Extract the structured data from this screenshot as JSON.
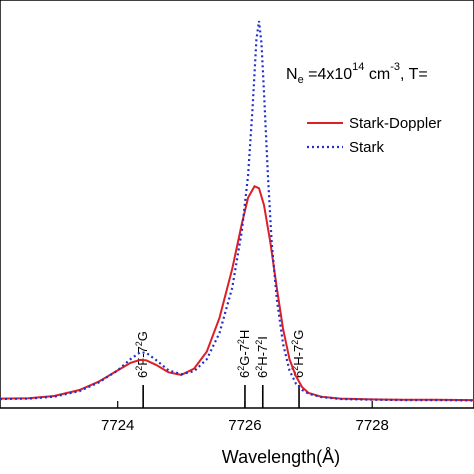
{
  "chart_data": {
    "type": "line",
    "xlabel": "Wavelength(Å)",
    "ylabel": "",
    "xlim": [
      7722.15,
      7729.6
    ],
    "ylim": [
      -0.02,
      1.05
    ],
    "x_ticks": [
      7724,
      7726,
      7728
    ],
    "x_tick_labels": [
      "7724",
      "7726",
      "7728"
    ],
    "legend": {
      "condition": {
        "prefix": "N",
        "sub": "e",
        "mid": " =4x10",
        "sup1": "14",
        "unit": "  cm",
        "sup2": "-3",
        "suffix": ", T="
      },
      "entries": [
        {
          "name": "Stark-Doppler",
          "color": "#dd1f26",
          "style": "solid"
        },
        {
          "name": "Stark",
          "color": "#1f2fc8",
          "style": "dotted"
        }
      ],
      "placement": "top-right"
    },
    "series": [
      {
        "name": "Stark-Doppler",
        "color": "#dd1f26",
        "style": "solid",
        "x": [
          7722.15,
          7722.6,
          7723.0,
          7723.4,
          7723.7,
          7724.0,
          7724.2,
          7724.35,
          7724.45,
          7724.6,
          7724.8,
          7725.0,
          7725.2,
          7725.4,
          7725.6,
          7725.8,
          7725.95,
          7726.05,
          7726.15,
          7726.22,
          7726.3,
          7726.4,
          7726.5,
          7726.6,
          7726.7,
          7726.8,
          7726.9,
          7727.0,
          7727.2,
          7727.5,
          7728.0,
          7728.5,
          7729.0,
          7729.6
        ],
        "y": [
          0.005,
          0.006,
          0.012,
          0.028,
          0.05,
          0.08,
          0.1,
          0.108,
          0.107,
          0.095,
          0.075,
          0.068,
          0.085,
          0.13,
          0.22,
          0.35,
          0.47,
          0.54,
          0.57,
          0.565,
          0.52,
          0.42,
          0.3,
          0.19,
          0.11,
          0.065,
          0.035,
          0.02,
          0.01,
          0.005,
          0.003,
          0.002,
          0.002,
          0.001
        ]
      },
      {
        "name": "Stark",
        "color": "#1f2fc8",
        "style": "dotted",
        "x": [
          7722.15,
          7722.6,
          7723.0,
          7723.4,
          7723.7,
          7724.0,
          7724.2,
          7724.35,
          7724.45,
          7724.6,
          7724.8,
          7725.0,
          7725.2,
          7725.4,
          7725.6,
          7725.8,
          7725.95,
          7726.05,
          7726.12,
          7726.18,
          7726.22,
          7726.26,
          7726.3,
          7726.36,
          7726.42,
          7726.5,
          7726.6,
          7726.7,
          7726.8,
          7726.9,
          7727.0,
          7727.2,
          7727.5,
          7728.0,
          7728.5,
          7729.0,
          7729.6
        ],
        "y": [
          0.004,
          0.005,
          0.01,
          0.025,
          0.048,
          0.08,
          0.11,
          0.128,
          0.127,
          0.108,
          0.08,
          0.07,
          0.078,
          0.11,
          0.18,
          0.3,
          0.45,
          0.6,
          0.78,
          0.96,
          1.01,
          0.95,
          0.82,
          0.6,
          0.42,
          0.27,
          0.15,
          0.08,
          0.045,
          0.028,
          0.018,
          0.009,
          0.004,
          0.002,
          0.001,
          0.001,
          0.0
        ]
      }
    ],
    "markers": [
      {
        "x": 7724.4,
        "label_parts": [
          "6",
          "2",
          "F-7",
          "2",
          "G"
        ]
      },
      {
        "x": 7726.0,
        "label_parts": [
          "6",
          "2",
          "G-7",
          "2",
          "H"
        ]
      },
      {
        "x": 7726.28,
        "label_parts": [
          "6",
          "2",
          "H-7",
          "2",
          "I"
        ]
      },
      {
        "x": 7726.85,
        "label_parts": [
          "6",
          "2",
          "H-7",
          "2",
          "G"
        ]
      }
    ]
  }
}
